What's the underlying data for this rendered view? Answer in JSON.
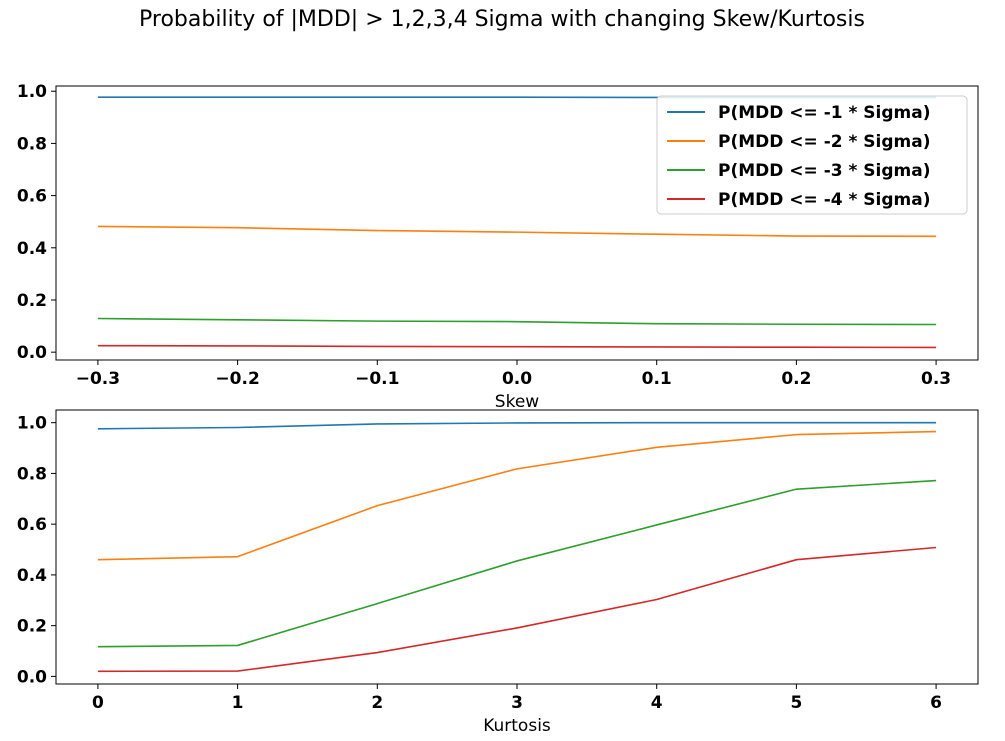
{
  "figure": {
    "title": "Probability of |MDD| > 1,2,3,4 Sigma with changing Skew/Kurtosis"
  },
  "colors": {
    "series_1": "#1f77b4",
    "series_2": "#ff7f0e",
    "series_3": "#2ca02c",
    "series_4": "#d62728"
  },
  "chart_data": [
    {
      "type": "line",
      "title": "",
      "xlabel": "Skew",
      "ylabel": "",
      "xlim": [
        -0.33,
        0.33
      ],
      "ylim": [
        -0.03,
        1.02
      ],
      "xticks": [
        -0.3,
        -0.2,
        -0.1,
        0.0,
        0.1,
        0.2,
        0.3
      ],
      "xtick_labels": [
        "−0.3",
        "−0.2",
        "−0.1",
        "0.0",
        "0.1",
        "0.2",
        "0.3"
      ],
      "yticks": [
        0.0,
        0.2,
        0.4,
        0.6,
        0.8,
        1.0
      ],
      "ytick_labels": [
        "0.0",
        "0.2",
        "0.4",
        "0.6",
        "0.8",
        "1.0"
      ],
      "grid": false,
      "legend": "upper-right",
      "x": [
        -0.3,
        -0.2,
        -0.1,
        0.0,
        0.1,
        0.2,
        0.3
      ],
      "series": [
        {
          "name": "P(MDD <= -1 * Sigma)",
          "color": "#1f77b4",
          "values": [
            0.977,
            0.977,
            0.977,
            0.977,
            0.976,
            0.976,
            0.976
          ]
        },
        {
          "name": "P(MDD <= -2 * Sigma)",
          "color": "#ff7f0e",
          "values": [
            0.482,
            0.477,
            0.466,
            0.46,
            0.452,
            0.445,
            0.444
          ]
        },
        {
          "name": "P(MDD <= -3 * Sigma)",
          "color": "#2ca02c",
          "values": [
            0.129,
            0.124,
            0.119,
            0.117,
            0.109,
            0.107,
            0.106
          ]
        },
        {
          "name": "P(MDD <= -4 * Sigma)",
          "color": "#d62728",
          "values": [
            0.025,
            0.024,
            0.022,
            0.021,
            0.02,
            0.019,
            0.018
          ]
        }
      ]
    },
    {
      "type": "line",
      "title": "",
      "xlabel": "Kurtosis",
      "ylabel": "",
      "xlim": [
        -0.3,
        6.3
      ],
      "ylim": [
        -0.03,
        1.05
      ],
      "xticks": [
        0,
        1,
        2,
        3,
        4,
        5,
        6
      ],
      "xtick_labels": [
        "0",
        "1",
        "2",
        "3",
        "4",
        "5",
        "6"
      ],
      "yticks": [
        0.0,
        0.2,
        0.4,
        0.6,
        0.8,
        1.0
      ],
      "ytick_labels": [
        "0.0",
        "0.2",
        "0.4",
        "0.6",
        "0.8",
        "1.0"
      ],
      "grid": false,
      "x": [
        0,
        1,
        2,
        3,
        4,
        5,
        6
      ],
      "series": [
        {
          "name": "P(MDD <= -1 * Sigma)",
          "color": "#1f77b4",
          "values": [
            0.976,
            0.981,
            0.995,
            0.999,
            1.0,
            1.0,
            1.0
          ]
        },
        {
          "name": "P(MDD <= -2 * Sigma)",
          "color": "#ff7f0e",
          "values": [
            0.46,
            0.472,
            0.673,
            0.818,
            0.903,
            0.953,
            0.965
          ]
        },
        {
          "name": "P(MDD <= -3 * Sigma)",
          "color": "#2ca02c",
          "values": [
            0.117,
            0.122,
            0.287,
            0.455,
            0.597,
            0.738,
            0.772
          ]
        },
        {
          "name": "P(MDD <= -4 * Sigma)",
          "color": "#d62728",
          "values": [
            0.02,
            0.021,
            0.094,
            0.191,
            0.303,
            0.46,
            0.508
          ]
        }
      ]
    }
  ]
}
